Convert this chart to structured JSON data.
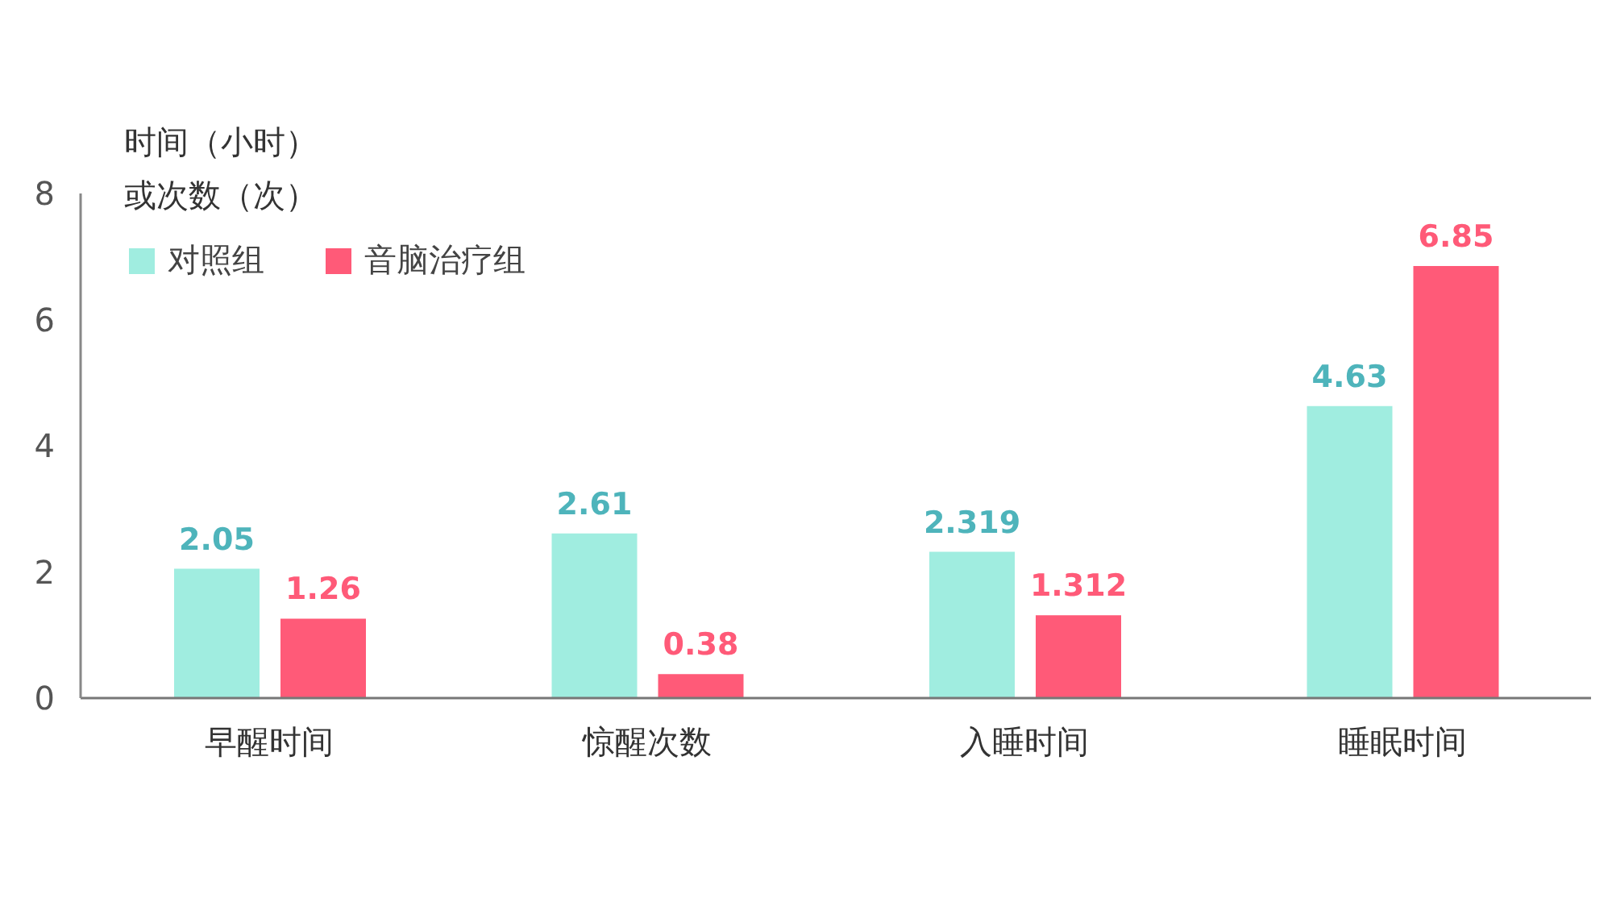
{
  "chart_data": {
    "type": "bar",
    "ylabel": "时间（小时）或次数（次）",
    "categories": [
      "早醒时间",
      "惊醒次数",
      "入睡时间",
      "睡眠时间"
    ],
    "series": [
      {
        "name": "对照组",
        "color": "#a0ede0",
        "values": [
          2.05,
          2.61,
          2.319,
          4.63
        ]
      },
      {
        "name": "音脑治疗组",
        "color": "#ff5a78",
        "values": [
          1.26,
          0.38,
          1.312,
          6.85
        ]
      }
    ],
    "ylim": [
      0,
      8
    ],
    "yticks": [
      0,
      2,
      4,
      6,
      8
    ],
    "data_labels": true,
    "legend": "top left"
  }
}
